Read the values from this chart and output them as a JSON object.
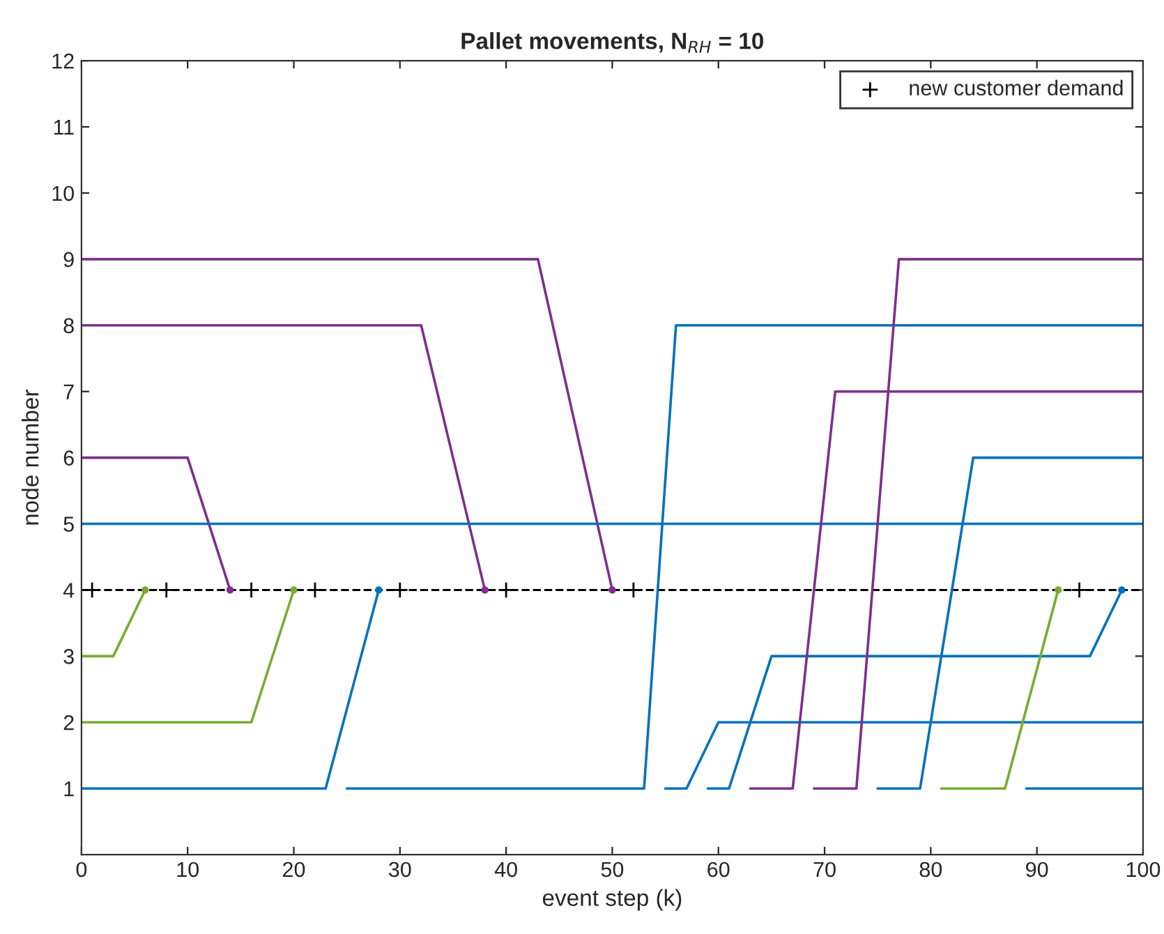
{
  "chart_data": {
    "type": "line",
    "title": "Pallet movements, N$_{RH}$ = 10",
    "xlabel": "event step (k)",
    "ylabel": "node number",
    "xlim": [
      0,
      100
    ],
    "xticks": [
      0,
      10,
      20,
      30,
      40,
      50,
      60,
      70,
      80,
      90,
      100
    ],
    "ylim": [
      0,
      12
    ],
    "yticks": [
      1,
      2,
      3,
      4,
      5,
      6,
      7,
      8,
      9,
      10,
      11,
      12
    ],
    "grid": false,
    "legend": "top right",
    "line_style": "solid",
    "marker": "none",
    "ref_lines": [
      {
        "axis": "y",
        "value": 4,
        "color": "#000000",
        "line_style": "dashed"
      }
    ],
    "series": [
      {
        "color": "#7e2f8e",
        "x": [
          0,
          43,
          50
        ],
        "values": [
          9,
          9,
          4
        ]
      },
      {
        "color": "#7e2f8e",
        "x": [
          0,
          32,
          38
        ],
        "values": [
          8,
          8,
          4
        ]
      },
      {
        "color": "#7e2f8e",
        "x": [
          0,
          10,
          14
        ],
        "values": [
          6,
          6,
          4
        ]
      },
      {
        "color": "#77ac30",
        "x": [
          0,
          3,
          6
        ],
        "values": [
          3,
          3,
          4
        ]
      },
      {
        "color": "#77ac30",
        "x": [
          0,
          16,
          20
        ],
        "values": [
          2,
          2,
          4
        ]
      },
      {
        "color": "#0072bd",
        "x": [
          0,
          23,
          28
        ],
        "values": [
          1,
          1,
          4
        ]
      },
      {
        "color": "#0072bd",
        "x": [
          0,
          100
        ],
        "values": [
          5,
          5
        ]
      },
      {
        "color": "#0072bd",
        "x": [
          25,
          53,
          56,
          100
        ],
        "values": [
          1,
          1,
          8,
          8
        ]
      },
      {
        "color": "#0072bd",
        "x": [
          55,
          57,
          60,
          100
        ],
        "values": [
          1,
          1,
          2,
          2
        ]
      },
      {
        "color": "#0072bd",
        "x": [
          59,
          61,
          65,
          95,
          98
        ],
        "values": [
          1,
          1,
          3,
          3,
          4
        ]
      },
      {
        "color": "#7e2f8e",
        "x": [
          63,
          67,
          71,
          100
        ],
        "values": [
          1,
          1,
          7,
          7
        ]
      },
      {
        "color": "#7e2f8e",
        "x": [
          69,
          73,
          77,
          100
        ],
        "values": [
          1,
          1,
          9,
          9
        ]
      },
      {
        "color": "#0072bd",
        "x": [
          75,
          79,
          84,
          100
        ],
        "values": [
          1,
          1,
          6,
          6
        ]
      },
      {
        "color": "#77ac30",
        "x": [
          81,
          87,
          92
        ],
        "values": [
          1,
          1,
          4
        ]
      },
      {
        "color": "#0072bd",
        "x": [
          89,
          100
        ],
        "values": [
          1,
          1
        ]
      },
      {
        "type": "scatter",
        "marker": "circle",
        "color": "#7e2f8e",
        "x": [
          14,
          38,
          50
        ],
        "values": [
          4,
          4,
          4
        ]
      },
      {
        "type": "scatter",
        "marker": "circle",
        "color": "#77ac30",
        "x": [
          6,
          20,
          92
        ],
        "values": [
          4,
          4,
          4
        ]
      },
      {
        "type": "scatter",
        "marker": "circle",
        "color": "#0072bd",
        "x": [
          28,
          98
        ],
        "values": [
          4,
          4
        ]
      },
      {
        "type": "scatter",
        "marker": "cross",
        "name": "new customer demand",
        "color": "#000000",
        "x": [
          1,
          8,
          16,
          22,
          30,
          40,
          52,
          94
        ],
        "values": [
          4,
          4,
          4,
          4,
          4,
          4,
          4,
          4
        ]
      }
    ]
  }
}
